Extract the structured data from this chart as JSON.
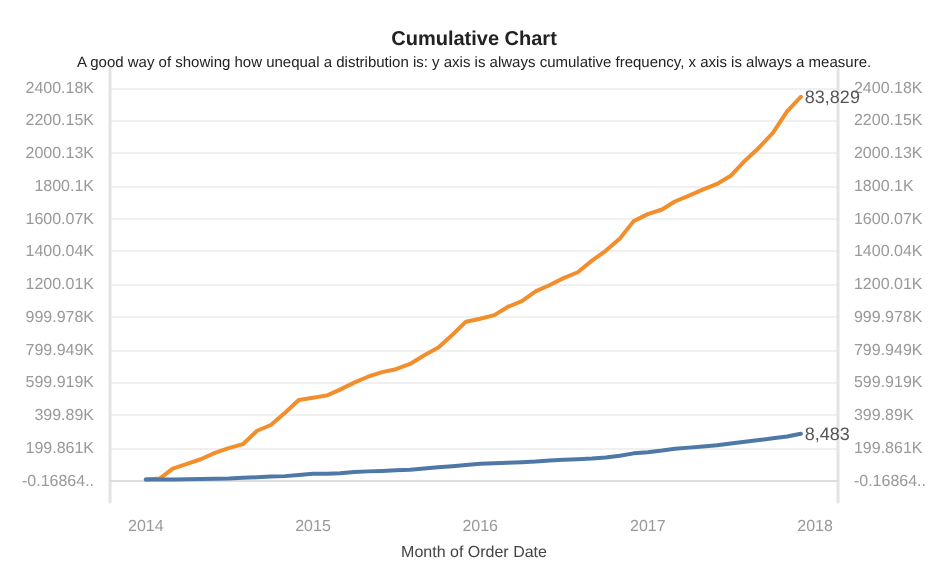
{
  "chart_data": {
    "type": "line",
    "title": "Cumulative Chart",
    "subtitle": "A good way of showing how unequal a distribution is: y axis is always cumulative frequency, x axis is always a measure.",
    "xlabel": "Month of Order Date",
    "x": [
      "2014-01",
      "2014-02",
      "2014-03",
      "2014-04",
      "2014-05",
      "2014-06",
      "2014-07",
      "2014-08",
      "2014-09",
      "2014-10",
      "2014-11",
      "2014-12",
      "2015-01",
      "2015-02",
      "2015-03",
      "2015-04",
      "2015-05",
      "2015-06",
      "2015-07",
      "2015-08",
      "2015-09",
      "2015-10",
      "2015-11",
      "2015-12",
      "2016-01",
      "2016-02",
      "2016-03",
      "2016-04",
      "2016-05",
      "2016-06",
      "2016-07",
      "2016-08",
      "2016-09",
      "2016-10",
      "2016-11",
      "2016-12",
      "2017-01",
      "2017-02",
      "2017-03",
      "2017-04",
      "2017-05",
      "2017-06",
      "2017-07",
      "2017-08",
      "2017-09",
      "2017-10",
      "2017-11",
      "2017-12"
    ],
    "series": [
      {
        "color": "#f28e2b",
        "values": [
          7000,
          14000,
          74000,
          103000,
          131000,
          170000,
          199000,
          223000,
          305000,
          340000,
          415000,
          493000,
          507000,
          521000,
          556000,
          599000,
          635000,
          663000,
          681000,
          713000,
          766000,
          812000,
          890000,
          971000,
          989000,
          1011000,
          1061000,
          1096000,
          1156000,
          1195000,
          1237000,
          1273000,
          1344000,
          1404000,
          1479000,
          1585000,
          1628000,
          1656000,
          1705000,
          1741000,
          1777000,
          1812000,
          1862000,
          1954000,
          2035000,
          2124000,
          2255000,
          2344000
        ]
      },
      {
        "color": "#4e79a7",
        "values": [
          7000,
          7000,
          7000,
          9000,
          11000,
          12000,
          14000,
          18000,
          21000,
          25000,
          28000,
          35000,
          43000,
          43000,
          46000,
          53000,
          57000,
          60000,
          64000,
          67000,
          74000,
          82000,
          89000,
          96000,
          103000,
          106000,
          110000,
          113000,
          117000,
          124000,
          128000,
          131000,
          135000,
          142000,
          152000,
          167000,
          174000,
          184000,
          195000,
          202000,
          209000,
          216000,
          227000,
          238000,
          248000,
          259000,
          270000,
          287000
        ]
      }
    ],
    "annotations": [
      {
        "text": "83,829",
        "x": "2017-12",
        "y": 2344000
      },
      {
        "text": "8,483",
        "x": "2017-12",
        "y": 287000
      }
    ],
    "xlim": [
      "2013-10-15",
      "2018-02-20"
    ],
    "xticks": [
      "2014",
      "2015",
      "2016",
      "2017",
      "2018"
    ],
    "ylim": [
      -130000,
      2520000
    ],
    "yticks": [
      {
        "value": -0.16864,
        "label": "-0.16864.."
      },
      {
        "value": 199861,
        "label": "199.861K"
      },
      {
        "value": 399890,
        "label": "399.89K"
      },
      {
        "value": 599919,
        "label": "599.919K"
      },
      {
        "value": 799949,
        "label": "799.949K"
      },
      {
        "value": 999978,
        "label": "999.978K"
      },
      {
        "value": 1200010,
        "label": "1200.01K"
      },
      {
        "value": 1400040,
        "label": "1400.04K"
      },
      {
        "value": 1600070,
        "label": "1600.07K"
      },
      {
        "value": 1800100,
        "label": "1800.1K"
      },
      {
        "value": 2000130,
        "label": "2000.13K"
      },
      {
        "value": 2200150,
        "label": "2200.15K"
      },
      {
        "value": 2400180,
        "label": "2400.18K"
      }
    ],
    "y2lim": [
      -130000,
      2520000
    ],
    "y2ticks": [
      {
        "value": -0.16864,
        "label": "-0.16864.."
      },
      {
        "value": 199861,
        "label": "199.861K"
      },
      {
        "value": 399890,
        "label": "399.89K"
      },
      {
        "value": 599919,
        "label": "599.919K"
      },
      {
        "value": 799949,
        "label": "799.949K"
      },
      {
        "value": 999978,
        "label": "999.978K"
      },
      {
        "value": 1200010,
        "label": "1200.01K"
      },
      {
        "value": 1400040,
        "label": "1400.04K"
      },
      {
        "value": 1600070,
        "label": "1600.07K"
      },
      {
        "value": 1800100,
        "label": "1800.1K"
      },
      {
        "value": 2000130,
        "label": "2000.13K"
      },
      {
        "value": 2200150,
        "label": "2200.15K"
      },
      {
        "value": 2400180,
        "label": "2400.18K"
      }
    ],
    "grid": "y",
    "marker": "none",
    "line_style": "solid"
  }
}
